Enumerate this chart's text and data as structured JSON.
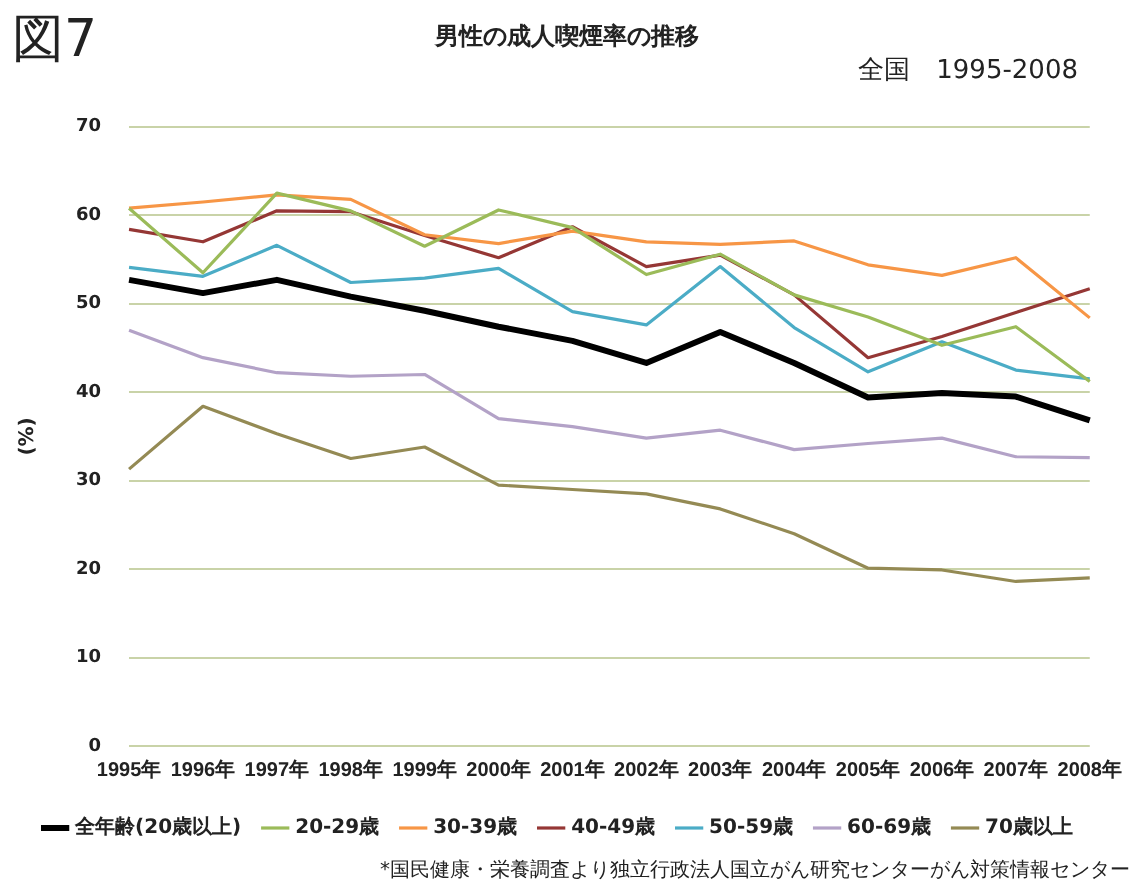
{
  "chart_data": {
    "type": "line",
    "title": "男性の成人喫煙率の推移",
    "subtitle": "全国　1995-2008",
    "ylabel": "(%)",
    "annotations": [
      "図7",
      "*国民健康・栄養調査より独立行政法人国立がん研究センターがん対策情報センター"
    ],
    "categories": [
      "1995年",
      "1996年",
      "1997年",
      "1998年",
      "1999年",
      "2000年",
      "2001年",
      "2002年",
      "2003年",
      "2004年",
      "2005年",
      "2006年",
      "2007年",
      "2008年"
    ],
    "series": [
      {
        "name": "全年齢(20歳以上)",
        "color": "#000000",
        "values": [
          52.7,
          51.2,
          52.7,
          50.8,
          49.2,
          47.4,
          45.8,
          43.3,
          46.8,
          43.3,
          39.4,
          39.9,
          39.5,
          36.8
        ]
      },
      {
        "name": "20-29歳",
        "color": "#9bbb59",
        "values": [
          60.8,
          53.5,
          62.5,
          60.5,
          56.5,
          60.6,
          58.6,
          53.3,
          55.6,
          51.0,
          48.5,
          45.3,
          47.4,
          41.2
        ]
      },
      {
        "name": "30-39歳",
        "color": "#f79646",
        "values": [
          60.8,
          61.5,
          62.3,
          61.8,
          57.8,
          56.8,
          58.2,
          57.0,
          56.7,
          57.1,
          54.4,
          53.2,
          55.2,
          48.4
        ]
      },
      {
        "name": "40-49歳",
        "color": "#953735",
        "values": [
          58.4,
          57.0,
          60.5,
          60.4,
          57.7,
          55.2,
          58.7,
          54.2,
          55.5,
          51.0,
          43.9,
          46.3,
          49.0,
          51.7
        ]
      },
      {
        "name": "50-59歳",
        "color": "#4bacc6",
        "values": [
          54.1,
          53.1,
          56.6,
          52.4,
          52.9,
          54.0,
          49.1,
          47.6,
          54.2,
          47.3,
          42.3,
          45.7,
          42.5,
          41.5
        ]
      },
      {
        "name": "60-69歳",
        "color": "#b3a2c7",
        "values": [
          47.0,
          43.9,
          42.2,
          41.8,
          42.0,
          37.0,
          36.1,
          34.8,
          35.7,
          33.5,
          34.2,
          34.8,
          32.7,
          32.6
        ]
      },
      {
        "name": "70歳以上",
        "color": "#948a54",
        "values": [
          31.3,
          38.4,
          35.3,
          32.5,
          33.8,
          29.5,
          29.0,
          28.5,
          26.8,
          24.0,
          20.1,
          19.9,
          18.6,
          19.0
        ]
      }
    ],
    "ylim": [
      0,
      70
    ],
    "yticks": [
      0,
      10,
      20,
      30,
      40,
      50,
      60,
      70
    ],
    "grid": "y",
    "legend": "bottom",
    "marker": "none",
    "line_style": "solid"
  }
}
